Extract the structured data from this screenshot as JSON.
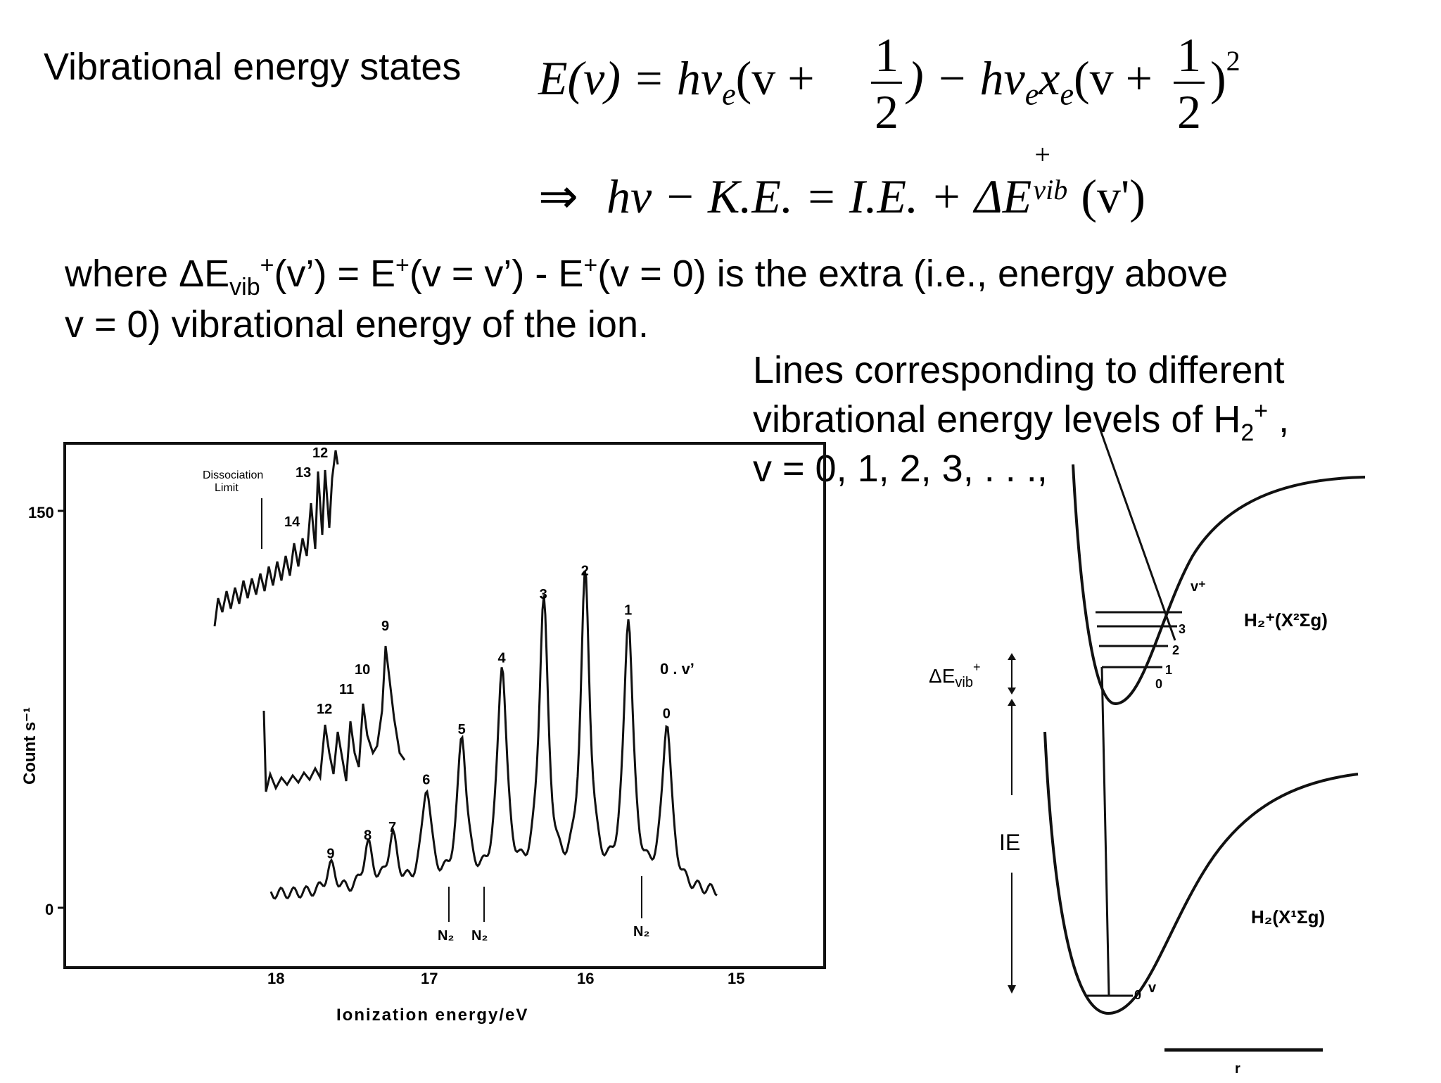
{
  "header": {
    "title": "Vibrational energy states"
  },
  "equations": {
    "energy_lhs": "E(v) = hν",
    "sub_e": "e",
    "energy_mid": "(v +",
    "frac_num": "1",
    "frac_den": "2",
    "energy_minus": ") − hν",
    "x": "x",
    "energy_mid2": "(v +",
    "energy_end": ")",
    "sup_2": "2",
    "arrow": "⇒",
    "rel_lhs": "hν − K.E. = I.E. + ΔE",
    "sup_plus": "+",
    "sub_vib": "vib",
    "rel_rhs": "(v')"
  },
  "description": {
    "line1_a": "where ΔE",
    "line1_vib": "vib",
    "line1_b": "+",
    "line1_c": "(v’) = E",
    "line1_d": "+",
    "line1_e": "(v = v’) -  E",
    "line1_f": "+",
    "line1_g": "(v = 0) is the extra (i.e., energy above",
    "line2": "v = 0) vibrational energy of the ion."
  },
  "caption": {
    "line1": "Lines corresponding to different",
    "line2_a": "vibrational energy levels of H",
    "line2_sub": "2",
    "line2_sup": "+",
    "line2_b": " ,",
    "line3": "v = 0, 1, 2, 3, . . .,"
  },
  "spectrum": {
    "ylabel": "Count s⁻¹",
    "xlabel": "Ionization energy/eV",
    "y_ticks": [
      "150",
      "0"
    ],
    "x_ticks": [
      "18",
      "17",
      "16",
      "15"
    ],
    "dissociation_label_1": "Dissociation",
    "dissociation_label_2": "Limit",
    "vprime_label": "0 . v’",
    "n2_label": "N₂",
    "main_peaks": [
      "0",
      "1",
      "2",
      "3",
      "4",
      "5",
      "6",
      "7",
      "8",
      "9"
    ],
    "mid_peaks": [
      "9",
      "10",
      "11",
      "12"
    ],
    "top_peaks": [
      "12",
      "13",
      "14"
    ]
  },
  "potential": {
    "delta_label": "ΔE",
    "delta_sub": "vib",
    "delta_sup": "+",
    "ie_label": "IE",
    "upper_state": "H₂⁺(X²Σg)",
    "lower_state": "H₂(X¹Σg)",
    "upper_levels": [
      "0",
      "1",
      "2",
      "3",
      "v⁺"
    ],
    "lower_levels": [
      "0",
      "v"
    ],
    "r_label": "r"
  },
  "chart_data": {
    "type": "line",
    "title": "",
    "xlabel": "Ionization energy/eV",
    "ylabel": "Count s⁻¹",
    "xlim": [
      18.7,
      14.75
    ],
    "ylim": [
      -12,
      165
    ],
    "series": [
      {
        "label": "v'",
        "x": [
          15.43,
          15.68,
          15.96,
          16.23,
          16.5,
          16.76,
          16.99,
          17.21,
          17.37,
          17.61
        ],
        "y": [
          63,
          102,
          117,
          108,
          84,
          57,
          38,
          20,
          17,
          10
        ]
      }
    ]
  }
}
